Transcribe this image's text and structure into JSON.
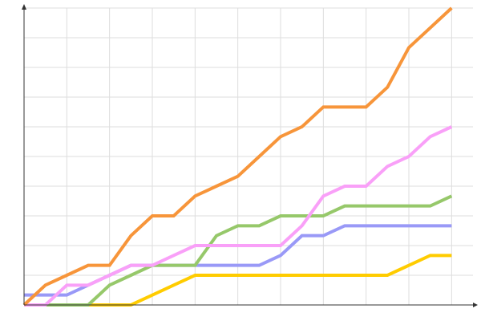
{
  "chart_data": {
    "type": "line",
    "x": [
      0,
      1,
      2,
      3,
      4,
      5,
      6,
      7,
      8,
      9,
      10,
      11,
      12,
      13,
      14,
      15,
      16,
      17,
      18,
      19,
      20
    ],
    "xlim": [
      0,
      21
    ],
    "xticks": [
      2,
      4,
      6,
      8,
      10,
      12,
      14,
      16,
      18,
      20
    ],
    "ylim": [
      0,
      30
    ],
    "yticks": [
      3,
      6,
      9,
      12,
      15,
      18,
      21,
      24,
      27,
      30
    ],
    "grid": true,
    "series": [
      {
        "color": "#ffcc00",
        "values": [
          0,
          0,
          0,
          0,
          0,
          0,
          1,
          2,
          3,
          3,
          3,
          3,
          3,
          3,
          3,
          3,
          3,
          3,
          4,
          5,
          5
        ]
      },
      {
        "color": "#9999f7",
        "values": [
          1,
          1,
          1,
          2,
          3,
          4,
          4,
          4,
          4,
          4,
          4,
          4,
          5,
          7,
          7,
          8,
          8,
          8,
          8,
          8,
          8
        ]
      },
      {
        "color": "#96c86a",
        "values": [
          0,
          0,
          0,
          0,
          2,
          3,
          4,
          4,
          4,
          7,
          8,
          8,
          9,
          9,
          9,
          10,
          10,
          10,
          10,
          10,
          11
        ]
      },
      {
        "color": "#f9a0f8",
        "values": [
          0,
          0,
          2,
          2,
          3,
          4,
          4,
          5,
          6,
          6,
          6,
          6,
          6,
          8,
          11,
          12,
          12,
          14,
          15,
          17,
          18
        ]
      },
      {
        "color": "#f7953a",
        "values": [
          0,
          2,
          3,
          4,
          4,
          7,
          9,
          9,
          11,
          12,
          13,
          15,
          17,
          18,
          20,
          20,
          20,
          22,
          26,
          28,
          30
        ]
      }
    ]
  }
}
